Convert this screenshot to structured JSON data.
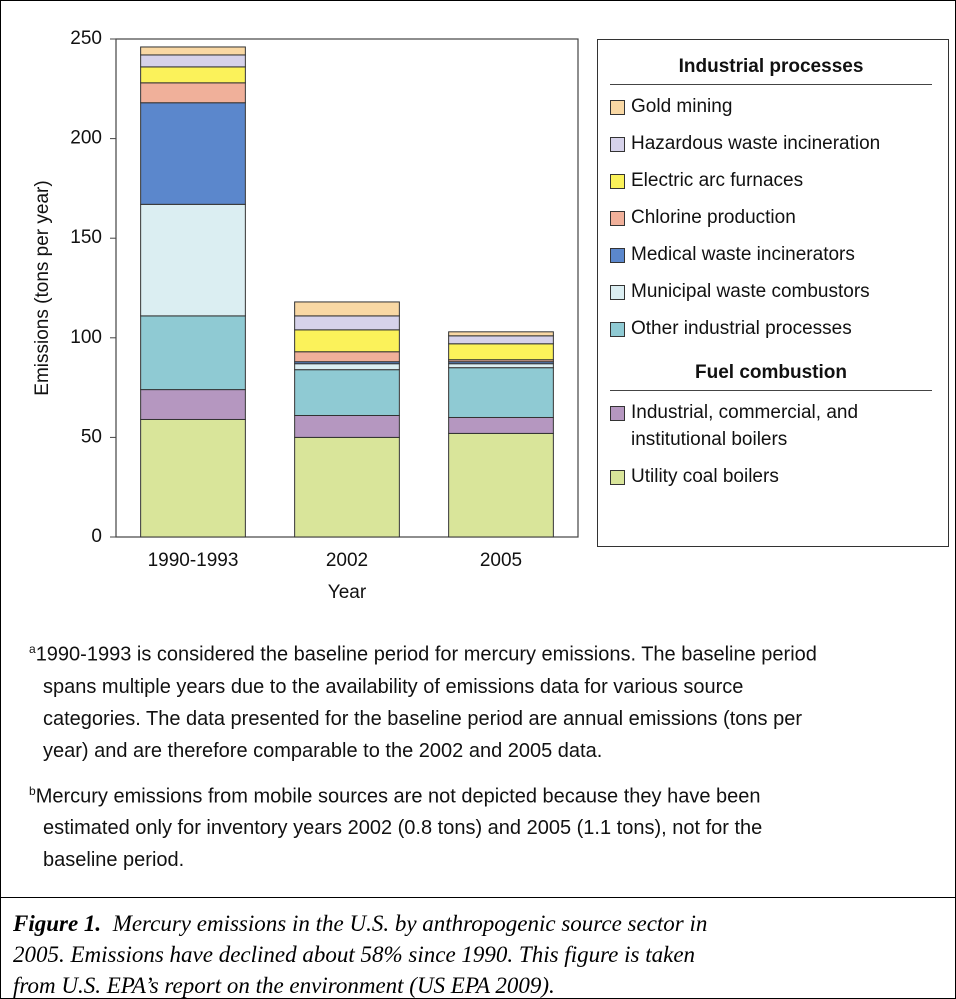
{
  "chart_data": {
    "type": "bar",
    "stacked": true,
    "y_label": "Emissions (tons per year)",
    "x_label": "Year",
    "categories": [
      "1990-1993",
      "2002",
      "2005"
    ],
    "ylim": [
      0,
      250
    ],
    "yticks": [
      0,
      50,
      100,
      150,
      200,
      250
    ],
    "grid": false,
    "series": [
      {
        "name": "Utility coal boilers",
        "group": "Fuel combustion",
        "color": "#d9e59a",
        "values": [
          59,
          50,
          52
        ]
      },
      {
        "name": "Industrial, commercial, and institutional boilers",
        "group": "Fuel combustion",
        "color": "#b597c0",
        "values": [
          15,
          11,
          8
        ]
      },
      {
        "name": "Other industrial processes",
        "group": "Industrial processes",
        "color": "#8fcad3",
        "values": [
          37,
          23,
          25
        ]
      },
      {
        "name": "Municipal waste combustors",
        "group": "Industrial processes",
        "color": "#dbeef2",
        "values": [
          56,
          3,
          2
        ]
      },
      {
        "name": "Medical waste incinerators",
        "group": "Industrial processes",
        "color": "#5b87cc",
        "values": [
          51,
          1,
          1
        ]
      },
      {
        "name": "Chlorine production",
        "group": "Industrial processes",
        "color": "#f0b09a",
        "values": [
          10,
          5,
          1
        ]
      },
      {
        "name": "Electric arc furnaces",
        "group": "Industrial processes",
        "color": "#fbf25a",
        "values": [
          8,
          11,
          8
        ]
      },
      {
        "name": "Hazardous waste incineration",
        "group": "Industrial processes",
        "color": "#d6d2ea",
        "values": [
          6,
          7,
          4
        ]
      },
      {
        "name": "Gold mining",
        "group": "Industrial processes",
        "color": "#f9d8a4",
        "values": [
          4,
          7,
          2
        ]
      }
    ]
  },
  "notes": [
    {
      "marker": "a",
      "lines": [
        "1990-1993 is considered the baseline period for mercury emissions. The baseline period",
        "spans multiple years due to the availability of emissions data for various source",
        "categories. The data presented for the baseline period are annual emissions (tons per",
        "year) and are therefore comparable to the 2002 and 2005 data."
      ]
    },
    {
      "marker": "b",
      "lines": [
        "Mercury emissions from mobile sources are not depicted because they have been",
        "estimated only for inventory years 2002 (0.8 tons) and 2005 (1.1 tons), not for the",
        "baseline period."
      ]
    }
  ],
  "caption": {
    "label": "Figure 1.",
    "lines": [
      "Mercury emissions in the U.S. by anthropogenic source sector in",
      "2005.  Emissions have declined about 58% since 1990.  This figure is taken",
      "from U.S. EPA’s report on the environment (US EPA 2009)."
    ]
  }
}
